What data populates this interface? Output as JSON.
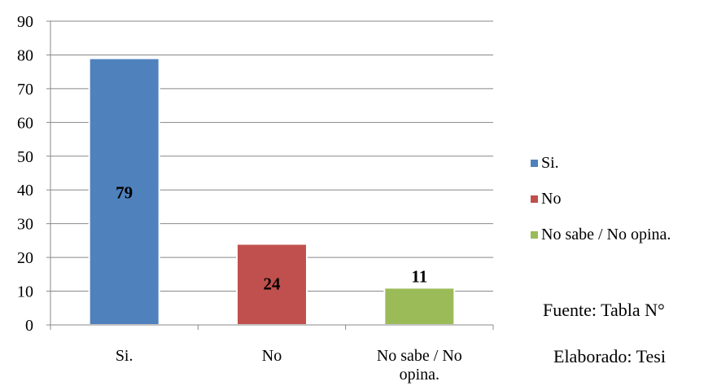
{
  "chart_data": {
    "type": "bar",
    "categories": [
      "Si.",
      "No",
      "No sabe / No opina."
    ],
    "category_label_lines": [
      [
        "Si."
      ],
      [
        "No"
      ],
      [
        "No sabe / No",
        "opina."
      ]
    ],
    "values": [
      79,
      24,
      11
    ],
    "data_labels": [
      "79",
      "24",
      "11"
    ],
    "colors": [
      "#4F81BD",
      "#C0504D",
      "#9BBB59"
    ],
    "ylim": [
      0,
      90
    ],
    "yticks": [
      "0",
      "10",
      "20",
      "30",
      "40",
      "50",
      "60",
      "70",
      "80",
      "90"
    ],
    "grid": true,
    "legend_position": "right",
    "legend": [
      "Si.",
      "No",
      "No sabe / No opina."
    ]
  },
  "footer": {
    "source": "Fuente: Tabla N°",
    "made_by": "Elaborado: Tesi"
  }
}
